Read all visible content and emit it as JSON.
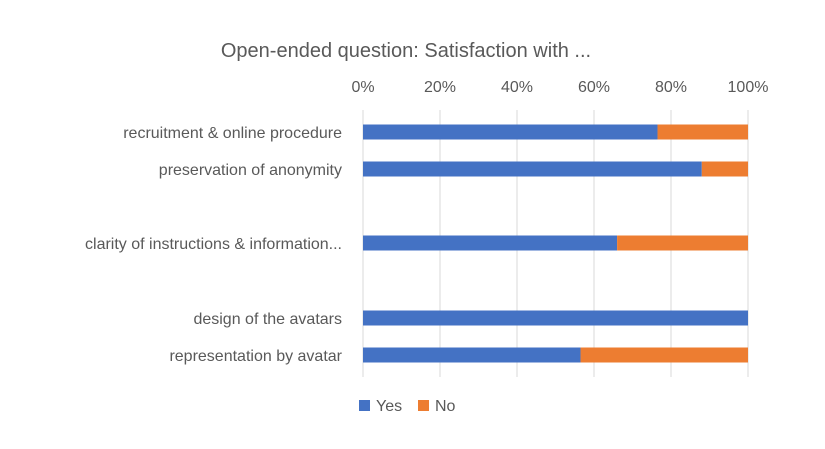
{
  "chart_data": {
    "type": "bar",
    "orientation": "horizontal",
    "stacked": "percent",
    "title": "Open-ended question: Satisfaction with ...",
    "categories": [
      "recruitment & online procedure",
      "preservation of anonymity",
      "",
      "clarity of instructions & information...",
      "",
      "design of the avatars",
      "representation by avatar"
    ],
    "series": [
      {
        "name": "Yes",
        "color": "#4472C4",
        "values": [
          76.5,
          88,
          null,
          66,
          null,
          100,
          56.5
        ]
      },
      {
        "name": "No",
        "color": "#ED7D31",
        "values": [
          23.5,
          12,
          null,
          34,
          null,
          0,
          43.5
        ]
      }
    ],
    "xaxis": {
      "position": "top",
      "ticks": [
        "0%",
        "20%",
        "40%",
        "60%",
        "80%",
        "100%"
      ],
      "range": [
        0,
        100
      ]
    },
    "grid": true,
    "legend": "bottom"
  }
}
